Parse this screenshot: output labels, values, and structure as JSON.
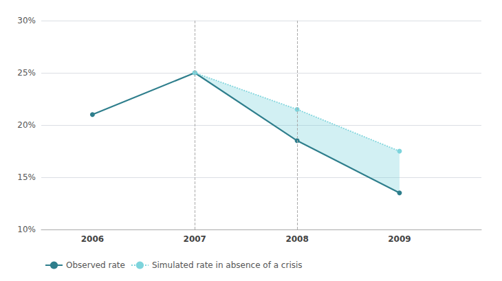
{
  "chart_data": {
    "type": "line",
    "x": [
      2006,
      2007,
      2008,
      2009
    ],
    "series": [
      {
        "name": "Observed rate",
        "color": "#2E7E8C",
        "values": [
          21.0,
          25.0,
          18.5,
          13.5
        ],
        "marker": "circle",
        "line_style": "solid"
      },
      {
        "name": "Simulated rate in absence of a crisis",
        "color": "#7DD4DC",
        "values": [
          null,
          25.0,
          21.5,
          17.5
        ],
        "marker": "circle",
        "line_style": "dotted"
      }
    ],
    "xlim": [
      2005.5,
      2009.8
    ],
    "xticks": [
      2006,
      2007,
      2008,
      2009
    ],
    "ylim": [
      10,
      30
    ],
    "yticks": [
      {
        "value": 10,
        "label": "10%"
      },
      {
        "value": 15,
        "label": "15%"
      },
      {
        "value": 20,
        "label": "20%"
      },
      {
        "value": 25,
        "label": "25%"
      },
      {
        "value": 30,
        "label": "30%"
      }
    ],
    "grid": true,
    "legend": "bottom",
    "vlines": [
      2007,
      2008
    ]
  }
}
